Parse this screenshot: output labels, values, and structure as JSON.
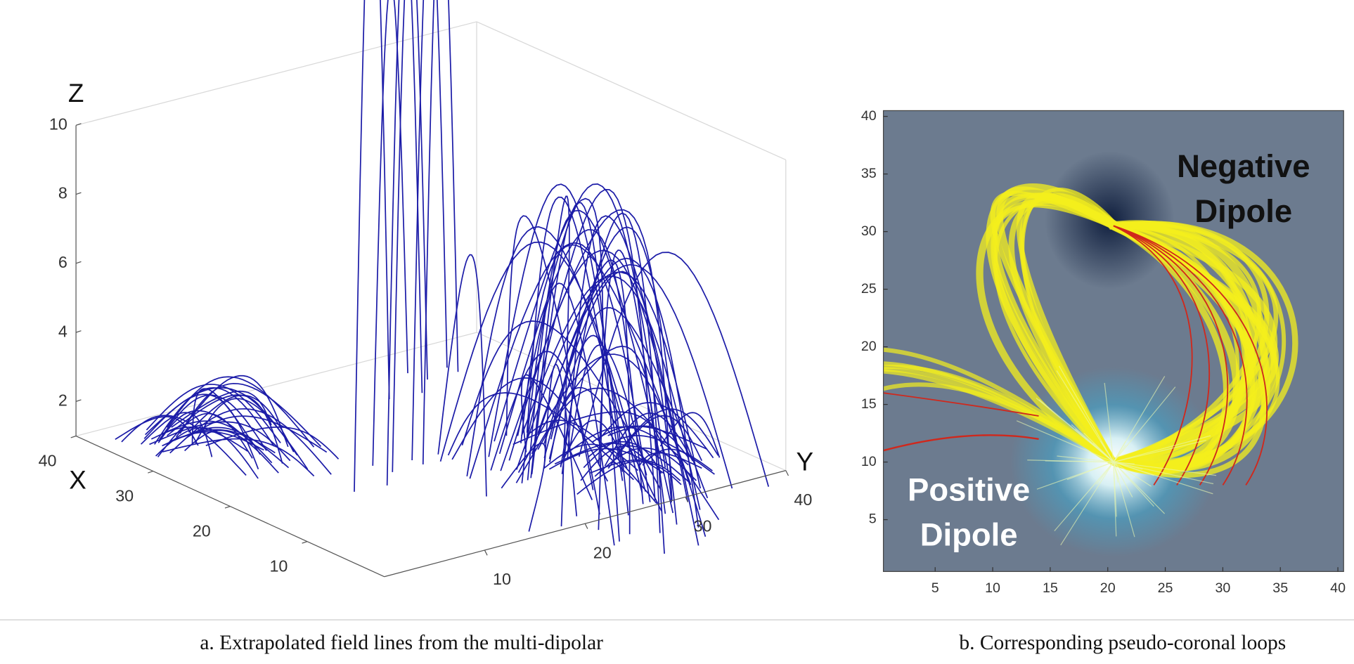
{
  "panel_a": {
    "axis_labels": {
      "x": "X",
      "y": "Y",
      "z": "Z"
    },
    "xlim": [
      0,
      40
    ],
    "ylim": [
      0,
      40
    ],
    "zlim": [
      1,
      10
    ],
    "xticks": [
      10,
      20,
      30,
      40
    ],
    "yticks": [
      10,
      20,
      30,
      40
    ],
    "zticks": [
      2,
      4,
      6,
      8,
      10
    ],
    "caption": "a. Extrapolated field lines from the multi-dipolar"
  },
  "panel_b": {
    "xlim": [
      0.5,
      40.5
    ],
    "ylim": [
      0.5,
      40.5
    ],
    "xticks": [
      5,
      10,
      15,
      20,
      25,
      30,
      35,
      40
    ],
    "yticks": [
      5,
      10,
      15,
      20,
      25,
      30,
      35,
      40
    ],
    "negative_label": [
      "Negative",
      "Dipole"
    ],
    "positive_label": [
      "Positive",
      "Dipole"
    ],
    "caption": "b. Corresponding pseudo-coronal loops"
  }
}
